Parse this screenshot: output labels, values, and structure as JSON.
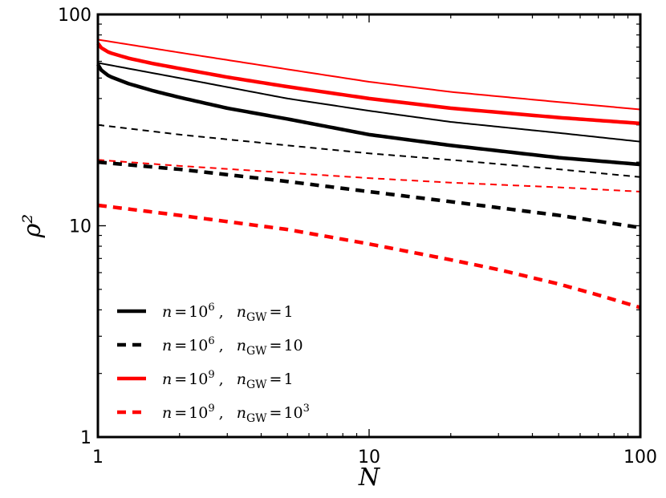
{
  "chart_data": {
    "type": "line",
    "title": "",
    "xlabel": "N",
    "ylabel": "ρ²",
    "xscale": "log",
    "yscale": "log",
    "xlim": [
      1,
      100
    ],
    "ylim": [
      1,
      100
    ],
    "x_ticks": [
      {
        "value": 1,
        "label": "1"
      },
      {
        "value": 10,
        "label": "10"
      },
      {
        "value": 100,
        "label": "100"
      }
    ],
    "y_ticks": [
      {
        "value": 1,
        "label": "1"
      },
      {
        "value": 10,
        "label": "10"
      },
      {
        "value": 100,
        "label": "100"
      }
    ],
    "grid": false,
    "legend_position": "lower-left",
    "series": [
      {
        "id": "thin-black-solid",
        "in_legend": false,
        "color": "#000000",
        "style": "solid",
        "weight": "thin",
        "x": [
          1,
          2,
          5,
          10,
          20,
          50,
          100
        ],
        "y": [
          59,
          50,
          40,
          35,
          31,
          27.5,
          25
        ]
      },
      {
        "id": "thin-red-solid",
        "in_legend": false,
        "color": "#ff0000",
        "style": "solid",
        "weight": "thin",
        "x": [
          1,
          2,
          5,
          10,
          20,
          50,
          100
        ],
        "y": [
          76,
          66,
          55,
          48,
          43,
          38.5,
          35.5
        ]
      },
      {
        "id": "thin-black-dashed",
        "in_legend": false,
        "color": "#000000",
        "style": "dashed",
        "weight": "thin",
        "x": [
          1,
          2,
          5,
          10,
          20,
          50,
          100
        ],
        "y": [
          30,
          27,
          24,
          22,
          20.5,
          18.5,
          17
        ]
      },
      {
        "id": "thin-red-dashed",
        "in_legend": false,
        "color": "#ff0000",
        "style": "dashed",
        "weight": "thin",
        "x": [
          1,
          2,
          5,
          10,
          20,
          50,
          100
        ],
        "y": [
          20.5,
          19.2,
          17.8,
          16.8,
          16,
          15.2,
          14.5
        ]
      },
      {
        "id": "n6-ngw1",
        "in_legend": true,
        "legend_label": {
          "n": "n",
          "eq": "=",
          "base": "10",
          "exp": "6",
          "sep": ",",
          "ngw": "n",
          "ngw_sub": "GW",
          "eq2": "=",
          "val_base": "1",
          "val_exp": ""
        },
        "color": "#000000",
        "style": "solid",
        "weight": "thick",
        "x": [
          1,
          1.02,
          1.1,
          1.3,
          1.6,
          2,
          3,
          5,
          10,
          20,
          50,
          100
        ],
        "y": [
          58,
          55,
          51,
          47,
          43.5,
          40.5,
          36,
          32,
          27,
          24,
          21,
          19.5
        ]
      },
      {
        "id": "n6-ngw10",
        "in_legend": true,
        "legend_label": {
          "n": "n",
          "eq": "=",
          "base": "10",
          "exp": "6",
          "sep": ",",
          "ngw": "n",
          "ngw_sub": "GW",
          "eq2": "=",
          "val_base": "10",
          "val_exp": ""
        },
        "color": "#000000",
        "style": "dashed",
        "weight": "thick",
        "x": [
          1,
          2,
          5,
          10,
          20,
          50,
          100
        ],
        "y": [
          20,
          18.5,
          16.2,
          14.5,
          13,
          11.2,
          9.8
        ]
      },
      {
        "id": "n9-ngw1",
        "in_legend": true,
        "legend_label": {
          "n": "n",
          "eq": "=",
          "base": "10",
          "exp": "9",
          "sep": ",",
          "ngw": "n",
          "ngw_sub": "GW",
          "eq2": "=",
          "val_base": "1",
          "val_exp": ""
        },
        "color": "#ff0000",
        "style": "solid",
        "weight": "thick",
        "x": [
          1,
          1.02,
          1.1,
          1.3,
          1.6,
          2,
          3,
          5,
          10,
          20,
          50,
          100
        ],
        "y": [
          73,
          70,
          66,
          62,
          58.5,
          55.5,
          50.5,
          45.5,
          40,
          36,
          32.5,
          30.5
        ]
      },
      {
        "id": "n9-ngw1000",
        "in_legend": true,
        "legend_label": {
          "n": "n",
          "eq": "=",
          "base": "10",
          "exp": "9",
          "sep": ",",
          "ngw": "n",
          "ngw_sub": "GW",
          "eq2": "=",
          "val_base": "10",
          "val_exp": "3"
        },
        "color": "#ff0000",
        "style": "dashed",
        "weight": "thick",
        "x": [
          1,
          2,
          5,
          10,
          20,
          30,
          50,
          70,
          100
        ],
        "y": [
          12.5,
          11.2,
          9.6,
          8.2,
          6.9,
          6.2,
          5.3,
          4.7,
          4.1
        ]
      }
    ]
  }
}
